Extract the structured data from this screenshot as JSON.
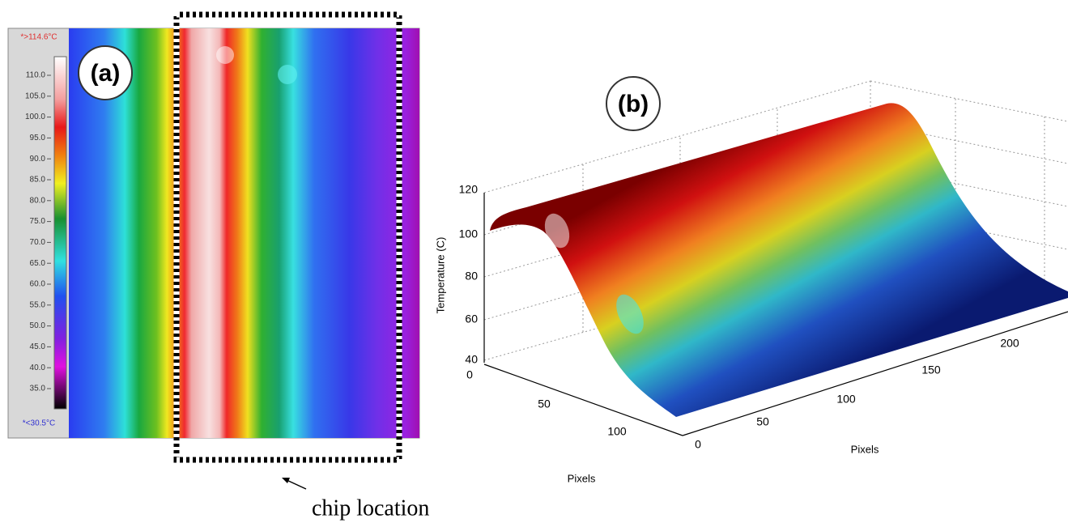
{
  "panel_a": {
    "label": "(a)",
    "max_label": "*>114.6°C",
    "min_label": "*<30.5°C",
    "colorbar_ticks": [
      "110.0",
      "105.0",
      "100.0",
      "95.0",
      "90.0",
      "85.0",
      "80.0",
      "75.0",
      "70.0",
      "65.0",
      "60.0",
      "55.0",
      "50.0",
      "45.0",
      "40.0",
      "35.0"
    ],
    "annotation": "chip location"
  },
  "panel_b": {
    "label": "(b)",
    "z_axis_label": "Temperature (C)",
    "z_ticks": [
      "120",
      "100",
      "80",
      "60",
      "40"
    ],
    "x_axis_label": "Pixels",
    "x_ticks": [
      "0",
      "50",
      "100",
      "150",
      "200"
    ],
    "y_axis_label": "Pixels",
    "y_ticks": [
      "0",
      "50",
      "100"
    ]
  }
}
